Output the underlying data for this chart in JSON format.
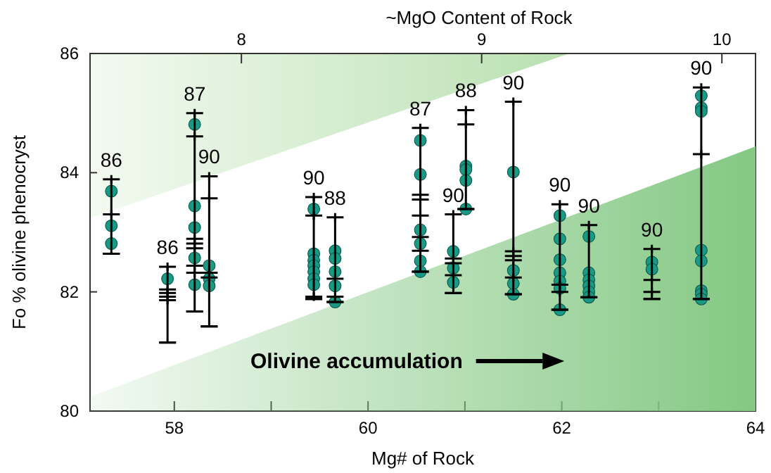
{
  "chart_data": {
    "type": "scatter",
    "xlabel": "Mg# of Rock",
    "ylabel": "Fo % olivine phenocryst",
    "x2label": "~MgO Content of Rock",
    "xlim": [
      57.13,
      64
    ],
    "xticks": [
      58,
      {
        "value": 59,
        "label": null
      },
      60,
      {
        "value": 61,
        "label": null
      },
      62,
      {
        "value": 63,
        "label": null
      },
      64
    ],
    "x2lim": [
      7.37,
      10.14
    ],
    "x2ticks": [
      8,
      9,
      10
    ],
    "ylim": [
      80,
      86
    ],
    "yticks": [
      80,
      82,
      84,
      86
    ],
    "series": [
      {
        "type": "area",
        "color": "#84c883",
        "x": [
          57.13,
          64
        ],
        "values": [
          80.24,
          84.44
        ]
      },
      {
        "color": "#000000",
        "marker": "cross",
        "x": [
          57.35,
          57.93,
          58.21,
          58.36,
          59.44,
          59.66,
          60.54,
          60.88,
          61.01,
          61.5,
          61.98,
          62.28,
          62.93,
          63.44
        ],
        "values": [
          83.89,
          82.42,
          85.0,
          83.94,
          83.59,
          83.25,
          84.75,
          83.3,
          85.05,
          85.19,
          83.47,
          83.12,
          82.72,
          85.43
        ],
        "errors": [
          [
            82.64,
            83.89
          ],
          [
            81.15,
            82.42
          ],
          [
            81.67,
            85.0
          ],
          [
            81.42,
            83.94
          ],
          [
            81.88,
            83.59
          ],
          [
            81.83,
            83.25
          ],
          [
            82.34,
            84.75
          ],
          [
            81.98,
            83.3
          ],
          [
            83.39,
            85.05
          ],
          [
            81.96,
            85.19
          ],
          [
            81.7,
            83.47
          ],
          [
            81.91,
            83.12
          ],
          [
            81.88,
            82.72
          ],
          [
            81.88,
            85.43
          ]
        ]
      },
      {
        "color": "#000000",
        "marker": "cross",
        "x": [
          57.35,
          57.93,
          57.93,
          57.93,
          57.93,
          58.21,
          58.21,
          58.21,
          58.21,
          58.21,
          58.21,
          58.36,
          58.36,
          58.36,
          59.44,
          59.44,
          59.66,
          59.66,
          60.54,
          60.54,
          60.54,
          60.54,
          60.54,
          60.88,
          60.88,
          60.88,
          61.01,
          61.5,
          61.5,
          61.5,
          61.5,
          61.98,
          61.98,
          62.93,
          62.93,
          63.44
        ],
        "values": [
          83.3,
          82.04,
          81.98,
          81.92,
          81.86,
          84.61,
          82.89,
          82.81,
          82.73,
          82.44,
          82.32,
          83.57,
          82.32,
          82.24,
          83.28,
          81.92,
          82.22,
          81.92,
          83.63,
          83.55,
          83.28,
          82.92,
          82.69,
          82.56,
          82.48,
          82.28,
          84.81,
          82.68,
          82.6,
          82.53,
          82.24,
          82.12,
          82.0,
          82.2,
          82.0,
          84.31
        ]
      },
      {
        "color": "#1a9a85",
        "marker": "circle",
        "x": [
          57.35,
          57.35,
          57.35,
          57.93,
          58.21,
          58.21,
          58.21,
          58.21,
          58.21,
          58.36,
          58.36,
          58.36,
          59.44,
          59.44,
          59.44,
          59.44,
          59.44,
          59.44,
          59.44,
          59.66,
          59.66,
          59.66,
          59.66,
          59.66,
          60.54,
          60.54,
          60.54,
          60.54,
          60.54,
          60.54,
          60.88,
          60.88,
          60.88,
          61.01,
          61.01,
          61.01,
          61.01,
          61.5,
          61.5,
          61.5,
          61.5,
          61.98,
          61.98,
          61.98,
          61.98,
          61.98,
          61.98,
          61.98,
          62.28,
          62.28,
          62.28,
          62.28,
          62.28,
          62.28,
          62.93,
          62.93,
          63.44,
          63.44,
          63.44,
          63.44,
          63.44,
          63.44,
          63.44,
          63.44
        ],
        "values": [
          83.69,
          83.11,
          82.81,
          82.22,
          84.81,
          83.44,
          83.08,
          82.57,
          82.12,
          82.44,
          82.22,
          82.1,
          83.39,
          82.64,
          82.53,
          82.44,
          82.34,
          82.22,
          82.12,
          82.69,
          82.56,
          82.34,
          82.1,
          81.83,
          84.54,
          83.97,
          83.04,
          82.81,
          82.52,
          82.34,
          82.68,
          82.4,
          82.16,
          84.11,
          84.05,
          83.87,
          83.39,
          84.01,
          82.36,
          82.14,
          81.96,
          83.28,
          82.89,
          82.54,
          82.32,
          82.18,
          82.06,
          81.7,
          82.93,
          82.32,
          82.2,
          82.1,
          82.0,
          81.91,
          82.5,
          82.38,
          85.29,
          85.09,
          85.03,
          82.7,
          82.52,
          82.02,
          81.96,
          81.88
        ]
      }
    ],
    "annotations": [
      {
        "text": "86",
        "x": 57.35,
        "y": 83.89
      },
      {
        "text": "86",
        "x": 57.93,
        "y": 82.42
      },
      {
        "text": "87",
        "x": 58.21,
        "y": 85.0
      },
      {
        "text": "90",
        "x": 58.36,
        "y": 83.94
      },
      {
        "text": "90",
        "x": 59.44,
        "y": 83.59
      },
      {
        "text": "88",
        "x": 59.66,
        "y": 83.25
      },
      {
        "text": "87",
        "x": 60.54,
        "y": 84.75
      },
      {
        "text": "90",
        "x": 60.88,
        "y": 83.3
      },
      {
        "text": "88",
        "x": 61.01,
        "y": 85.05
      },
      {
        "text": "90",
        "x": 61.5,
        "y": 85.19
      },
      {
        "text": "90",
        "x": 61.98,
        "y": 83.47
      },
      {
        "text": "90",
        "x": 62.28,
        "y": 83.12
      },
      {
        "text": "90",
        "x": 62.93,
        "y": 82.72
      },
      {
        "text": "90",
        "x": 63.44,
        "y": 85.43
      },
      "Olivine accumulation"
    ]
  }
}
